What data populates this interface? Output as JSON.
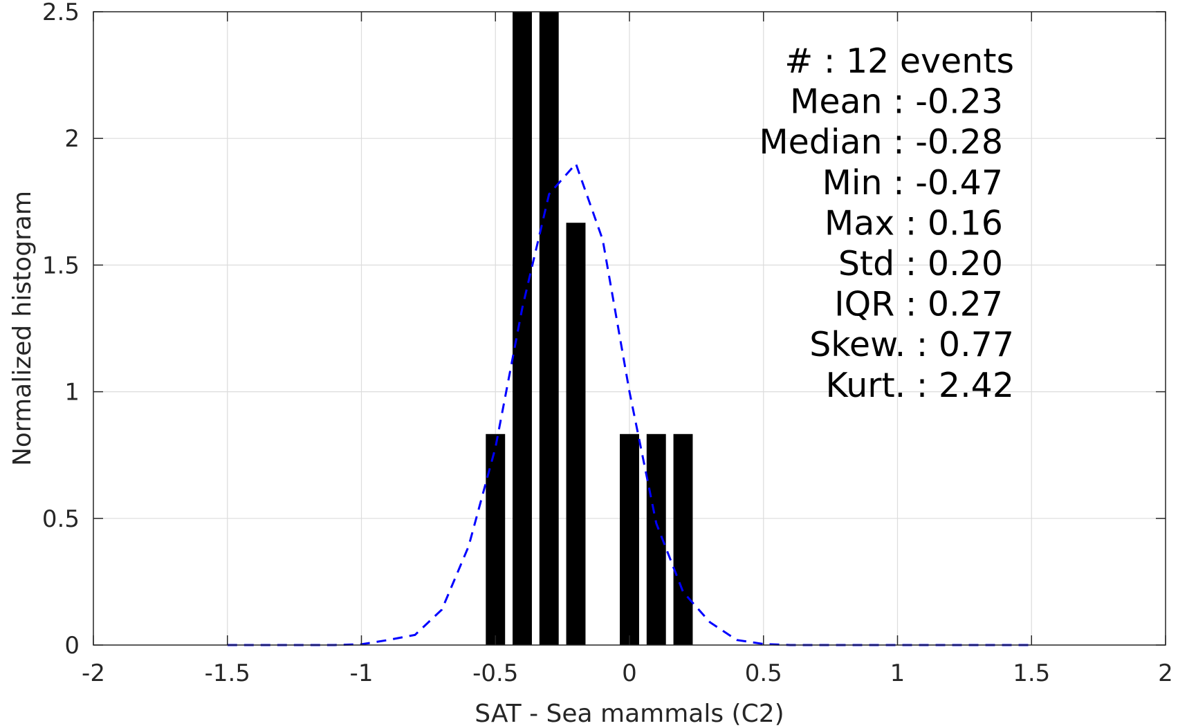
{
  "chart_data": {
    "type": "bar",
    "xlabel": "SAT - Sea mammals (C2)",
    "ylabel": "Normalized histogram",
    "xlim": [
      -2,
      2
    ],
    "ylim": [
      0,
      2.5
    ],
    "grid": true,
    "x_ticks": [
      "-2",
      "-1.5",
      "-1",
      "-0.5",
      "0",
      "0.5",
      "1",
      "1.5",
      "2"
    ],
    "y_ticks": [
      "0",
      "0.5",
      "1",
      "1.5",
      "2",
      "2.5"
    ],
    "bars": {
      "color": "#000000",
      "bin_width": 0.1,
      "x": [
        -0.5,
        -0.4,
        -0.3,
        -0.2,
        0.0,
        0.1,
        0.2
      ],
      "values": [
        0.833,
        2.5,
        2.5,
        1.667,
        0.833,
        0.833,
        0.833
      ]
    },
    "fit_curve": {
      "style": "dashed",
      "color": "#0000ff",
      "x": [
        -1.5,
        -1.4,
        -1.3,
        -1.2,
        -1.1,
        -1.0,
        -0.9,
        -0.8,
        -0.7,
        -0.6,
        -0.5,
        -0.4,
        -0.3,
        -0.2,
        -0.1,
        0.0,
        0.1,
        0.2,
        0.3,
        0.4,
        0.5,
        0.6,
        0.7,
        0.8,
        0.9,
        1.0,
        1.1,
        1.2,
        1.3,
        1.4,
        1.5
      ],
      "y": [
        0,
        0,
        0,
        0,
        0,
        0.003,
        0.02,
        0.04,
        0.14,
        0.39,
        0.78,
        1.33,
        1.78,
        1.9,
        1.6,
        1.0,
        0.48,
        0.21,
        0.09,
        0.02,
        0.004,
        0,
        0,
        0,
        0,
        0,
        0,
        0,
        0,
        0,
        0
      ]
    },
    "stats": {
      "lines": [
        "#  : 12 events",
        "Mean : -0.23",
        "Median : -0.28",
        "Min : -0.47",
        "Max : 0.16",
        "Std : 0.20",
        "IQR : 0.27",
        "Skew. : 0.77",
        "Kurt. : 2.42"
      ]
    }
  }
}
